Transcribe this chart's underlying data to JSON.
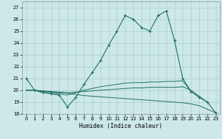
{
  "title": "",
  "xlabel": "Humidex (Indice chaleur)",
  "xlim": [
    -0.5,
    23.5
  ],
  "ylim": [
    18,
    27.5
  ],
  "yticks": [
    18,
    19,
    20,
    21,
    22,
    23,
    24,
    25,
    26,
    27
  ],
  "xticks": [
    0,
    1,
    2,
    3,
    4,
    5,
    6,
    7,
    8,
    9,
    10,
    11,
    12,
    13,
    14,
    15,
    16,
    17,
    18,
    19,
    20,
    21,
    22,
    23
  ],
  "bg_color": "#cce8e8",
  "grid_color": "#aacccc",
  "line_color": "#1a6b5e",
  "line1": {
    "x": [
      0,
      1,
      2,
      3,
      4,
      5,
      6,
      7,
      8,
      9,
      10,
      11,
      12,
      13,
      14,
      15,
      16,
      17,
      18,
      19,
      20,
      21,
      22,
      23
    ],
    "y": [
      21.0,
      20.0,
      19.8,
      19.7,
      19.6,
      18.6,
      19.4,
      20.5,
      21.5,
      22.5,
      23.8,
      25.0,
      26.3,
      26.0,
      25.3,
      25.0,
      26.3,
      26.7,
      24.2,
      21.0,
      19.9,
      19.4,
      19.0,
      18.1
    ]
  },
  "line2": {
    "x": [
      0,
      1,
      2,
      3,
      4,
      5,
      6,
      7,
      8,
      9,
      10,
      11,
      12,
      13,
      14,
      15,
      16,
      17,
      18,
      19,
      20,
      21,
      22,
      23
    ],
    "y": [
      20.0,
      20.0,
      19.9,
      19.8,
      19.7,
      19.6,
      19.8,
      20.0,
      20.15,
      20.3,
      20.4,
      20.5,
      20.6,
      20.65,
      20.65,
      20.7,
      20.7,
      20.75,
      20.75,
      20.8,
      19.9,
      null,
      null,
      null
    ]
  },
  "line3": {
    "x": [
      0,
      1,
      2,
      3,
      4,
      5,
      6,
      7,
      8,
      9,
      10,
      11,
      12,
      13,
      14,
      15,
      16,
      17,
      18,
      19,
      20,
      21,
      22,
      23
    ],
    "y": [
      20.0,
      20.0,
      19.9,
      19.85,
      19.8,
      19.75,
      19.65,
      19.55,
      19.5,
      19.45,
      19.4,
      19.35,
      19.3,
      19.25,
      19.2,
      19.15,
      19.1,
      19.05,
      19.0,
      18.95,
      18.85,
      18.7,
      18.4,
      18.1
    ]
  },
  "line4": {
    "x": [
      0,
      1,
      2,
      3,
      4,
      5,
      6,
      7,
      8,
      9,
      10,
      11,
      12,
      13,
      14,
      15,
      16,
      17,
      18,
      19,
      20,
      21,
      22,
      23
    ],
    "y": [
      20.0,
      20.0,
      19.95,
      19.9,
      19.85,
      19.8,
      19.85,
      19.9,
      19.95,
      20.0,
      20.05,
      20.1,
      20.15,
      20.2,
      20.2,
      20.25,
      20.25,
      20.25,
      20.25,
      20.3,
      20.0,
      19.5,
      19.0,
      null
    ]
  }
}
